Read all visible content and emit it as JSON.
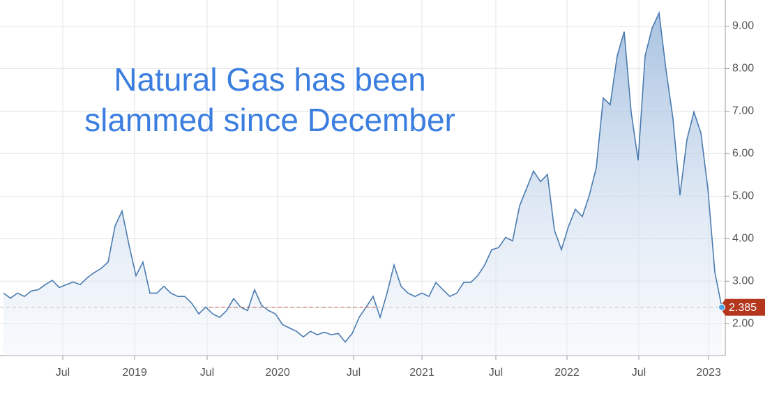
{
  "chart_data": {
    "type": "area",
    "annotation": [
      "Natural Gas has been",
      "slammed since December"
    ],
    "values": [
      2.72,
      2.6,
      2.72,
      2.64,
      2.77,
      2.8,
      2.92,
      3.02,
      2.85,
      2.92,
      2.98,
      2.92,
      3.08,
      3.2,
      3.3,
      3.45,
      4.3,
      4.65,
      3.85,
      3.13,
      3.45,
      2.72,
      2.72,
      2.88,
      2.72,
      2.64,
      2.64,
      2.48,
      2.23,
      2.39,
      2.23,
      2.15,
      2.31,
      2.59,
      2.39,
      2.31,
      2.8,
      2.43,
      2.31,
      2.23,
      1.98,
      1.9,
      1.82,
      1.69,
      1.82,
      1.74,
      1.8,
      1.74,
      1.77,
      1.57,
      1.77,
      2.15,
      2.39,
      2.64,
      2.15,
      2.72,
      3.38,
      2.88,
      2.72,
      2.64,
      2.72,
      2.64,
      2.97,
      2.8,
      2.64,
      2.72,
      2.97,
      2.97,
      3.13,
      3.38,
      3.74,
      3.79,
      4.03,
      3.95,
      4.77,
      5.18,
      5.59,
      5.34,
      5.51,
      4.2,
      3.74,
      4.28,
      4.69,
      4.52,
      5.02,
      5.67,
      7.31,
      7.15,
      8.3,
      8.87,
      6.98,
      5.84,
      8.3,
      8.95,
      9.31,
      7.97,
      6.82,
      5.02,
      6.33,
      6.98,
      6.49,
      5.18,
      3.21,
      2.385
    ],
    "color": "#4a7bb0",
    "xlim": [
      0,
      103
    ],
    "xticks": [
      {
        "value": 8.5,
        "label": "Jul"
      },
      {
        "value": 18.8,
        "label": "2019"
      },
      {
        "value": 29.2,
        "label": "Jul"
      },
      {
        "value": 39.3,
        "label": "2020"
      },
      {
        "value": 50.2,
        "label": "Jul"
      },
      {
        "value": 60,
        "label": "2021"
      },
      {
        "value": 70.6,
        "label": "Jul"
      },
      {
        "value": 80.8,
        "label": "2022"
      },
      {
        "value": 91.1,
        "label": "Jul"
      },
      {
        "value": 101.1,
        "label": "2023"
      }
    ],
    "ylim": [
      1.25,
      9.45
    ],
    "yticks": [
      {
        "value": 2,
        "label": "2.00"
      },
      {
        "value": 3,
        "label": "3.00"
      },
      {
        "value": 4,
        "label": "4.00"
      },
      {
        "value": 5,
        "label": "5.00"
      },
      {
        "value": 6,
        "label": "6.00"
      },
      {
        "value": 7,
        "label": "7.00"
      },
      {
        "value": 8,
        "label": "8.00"
      },
      {
        "value": 9,
        "label": "9.00"
      }
    ],
    "grid": true
  }
}
